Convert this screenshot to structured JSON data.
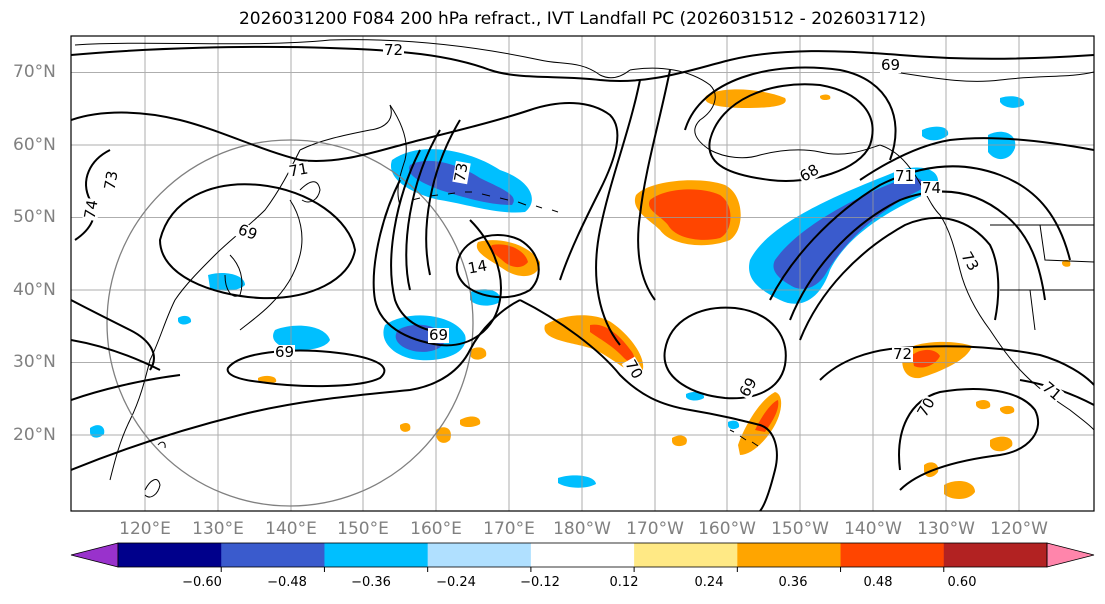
{
  "title": "2026031200 F084 200 hPa refract., IVT Landfall PC (2026031512 - 2026031712)",
  "lat_labels": [
    "70°N",
    "60°N",
    "50°N",
    "40°N",
    "30°N",
    "20°N"
  ],
  "lon_labels": [
    "120°E",
    "130°E",
    "140°E",
    "150°E",
    "160°E",
    "170°E",
    "180°W",
    "170°W",
    "160°W",
    "150°W",
    "140°W",
    "130°W",
    "120°W"
  ],
  "contour_labels": [
    "72",
    "69",
    "71",
    "73",
    "74",
    "69",
    "14",
    "73",
    "69",
    "69",
    "68",
    "71",
    "74",
    "73",
    "70",
    "69",
    "72",
    "70",
    "71"
  ],
  "colorbar": {
    "ticks": [
      "−0.60",
      "−0.48",
      "−0.36",
      "−0.24",
      "−0.12",
      "0.12",
      "0.24",
      "0.36",
      "0.48",
      "0.60"
    ],
    "colors": [
      "#9932CC",
      "#00008B",
      "#3A5BCD",
      "#00BFFF",
      "#B0E0FF",
      "#FFFFFF",
      "#FFE985",
      "#FFA500",
      "#FF4500",
      "#B22222",
      "#FF85AB"
    ]
  }
}
